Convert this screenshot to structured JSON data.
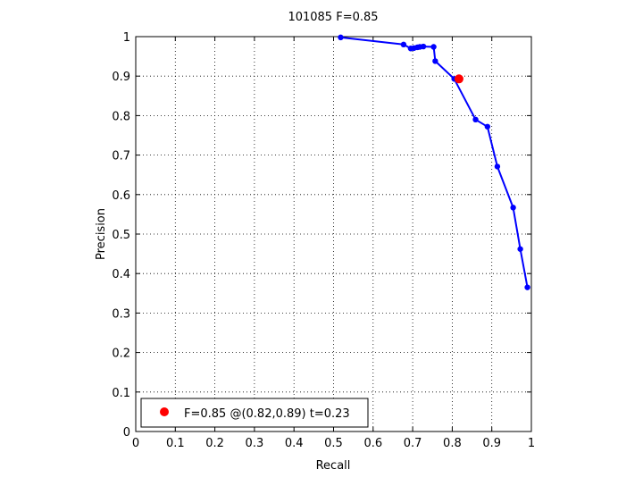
{
  "chart_data": {
    "type": "line",
    "title": "101085 F=0.85",
    "xlabel": "Recall",
    "ylabel": "Precision",
    "xlim": [
      0,
      1
    ],
    "ylim": [
      0,
      1
    ],
    "xticks": [
      "0",
      "0.1",
      "0.2",
      "0.3",
      "0.4",
      "0.5",
      "0.6",
      "0.7",
      "0.8",
      "0.9",
      "1"
    ],
    "yticks": [
      "0",
      "0.1",
      "0.2",
      "0.3",
      "0.4",
      "0.5",
      "0.6",
      "0.7",
      "0.8",
      "0.9",
      "1"
    ],
    "grid": true,
    "legend_position": "bottom-left",
    "series": [
      {
        "color": "#0000ff",
        "x": [
          0.518,
          0.677,
          0.695,
          0.703,
          0.712,
          0.718,
          0.727,
          0.753,
          0.757,
          0.805,
          0.859,
          0.889,
          0.914,
          0.954,
          0.972,
          0.99
        ],
        "y": [
          0.998,
          0.98,
          0.97,
          0.971,
          0.973,
          0.974,
          0.975,
          0.974,
          0.938,
          0.893,
          0.79,
          0.772,
          0.671,
          0.567,
          0.462,
          0.365
        ]
      }
    ],
    "best_point": {
      "color": "#ff0000",
      "x": 0.817,
      "y": 0.893,
      "label": "F=0.85 @(0.82,0.89) t=0.23"
    }
  }
}
